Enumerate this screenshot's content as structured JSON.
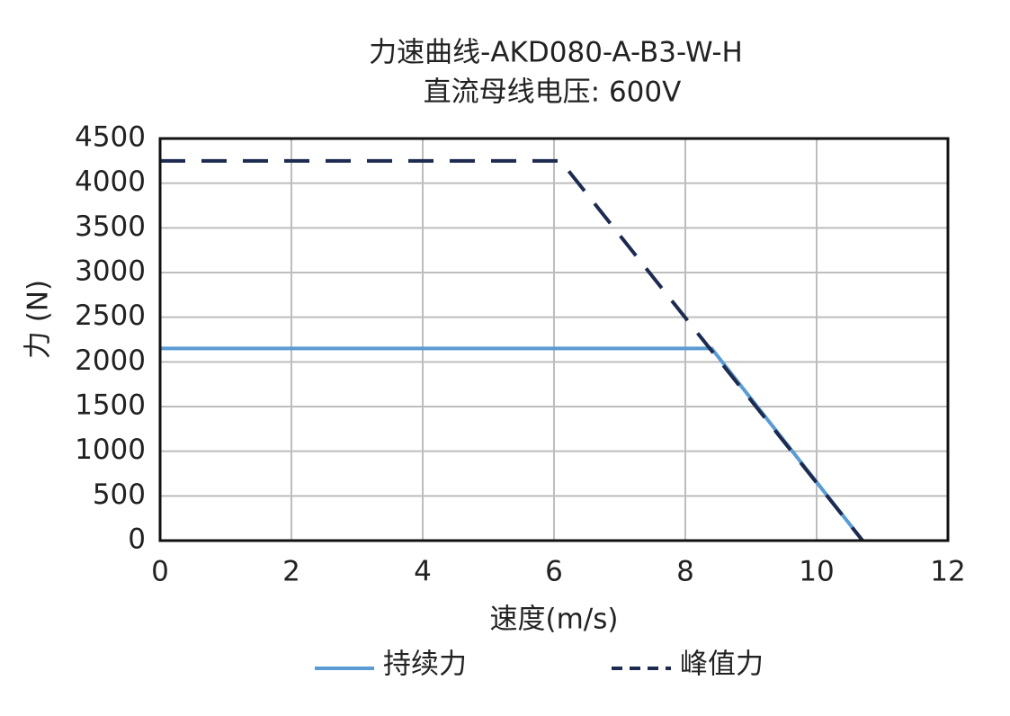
{
  "chart_data": {
    "type": "line",
    "title": "力速曲线-AKD080-A-B3-W-H",
    "subtitle": "直流母线电压: 600V",
    "x_label": "速度(m/s)",
    "y_label": "力 (N)",
    "series": [
      {
        "name": "持续力",
        "color": "#5a9bd4",
        "linestyle": "solid",
        "x": [
          0,
          8.4,
          10.7
        ],
        "values": [
          2150,
          2150,
          0
        ]
      },
      {
        "name": "峰值力",
        "color": "#1c2b4f",
        "linestyle": "dashed",
        "x": [
          0,
          6.1,
          10.7
        ],
        "values": [
          4250,
          4250,
          0
        ]
      }
    ],
    "xlim": [
      0,
      12
    ],
    "xticks": [
      0,
      2,
      4,
      6,
      8,
      10,
      12
    ],
    "ylim": [
      0,
      4500
    ],
    "yticks": [
      0,
      500,
      1000,
      1500,
      2000,
      2500,
      3000,
      3500,
      4000,
      4500
    ],
    "grid": true
  }
}
